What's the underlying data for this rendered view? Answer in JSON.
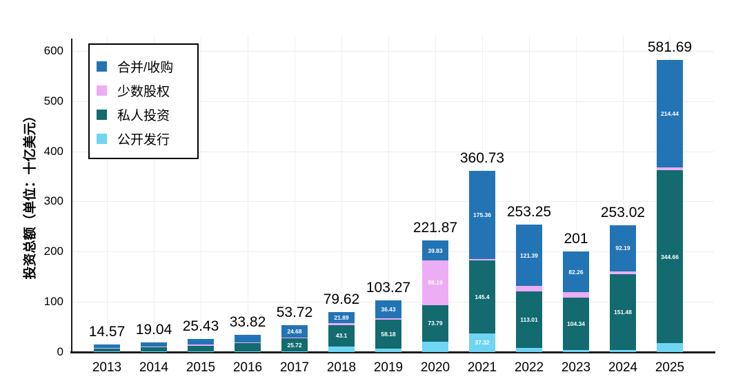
{
  "chart_data": {
    "type": "bar",
    "stacked": true,
    "ylabel": "投资总额（单位：十亿美元）",
    "yticks": [
      "0",
      "100",
      "200",
      "300",
      "400",
      "500",
      "600"
    ],
    "ylim": [
      0,
      630
    ],
    "grid": true,
    "legend_position": "top-left",
    "categories": [
      "2013",
      "2014",
      "2015",
      "2016",
      "2017",
      "2018",
      "2019",
      "2020",
      "2021",
      "2022",
      "2023",
      "2024",
      "2025"
    ],
    "totals": [
      "14.57",
      "19.04",
      "25.43",
      "33.82",
      "53.72",
      "79.62",
      "103.27",
      "221.87",
      "360.73",
      "253.25",
      "201",
      "253.02",
      "581.69"
    ],
    "series": [
      {
        "name": "公开发行",
        "color": "#6fd5f2",
        "values": [
          1.0,
          1.5,
          1.5,
          2.0,
          1.5,
          11.0,
          6.2,
          20.06,
          37.32,
          8.0,
          4.5,
          4.0,
          17.5
        ],
        "labels": [
          null,
          null,
          null,
          null,
          null,
          null,
          null,
          null,
          "37.32",
          null,
          null,
          null,
          null
        ]
      },
      {
        "name": "私人投资",
        "color": "#136b70",
        "values": [
          6.0,
          9.5,
          11.5,
          15.5,
          25.72,
          43.1,
          58.18,
          73.79,
          145.4,
          113.01,
          104.34,
          151.48,
          344.66
        ],
        "labels": [
          null,
          null,
          null,
          null,
          "25.72",
          "43.1",
          "58.18",
          "73.79",
          "145.4",
          "113.01",
          "104.34",
          "151.48",
          "344.66"
        ]
      },
      {
        "name": "少数股权",
        "color": "#ecadf4",
        "values": [
          1.5,
          0.5,
          1.5,
          1.8,
          1.82,
          3.63,
          2.46,
          88.19,
          2.65,
          10.85,
          9.9,
          5.35,
          5.09
        ],
        "labels": [
          null,
          null,
          null,
          null,
          null,
          null,
          null,
          "88.19",
          null,
          null,
          null,
          null,
          null
        ]
      },
      {
        "name": "合并/收购",
        "color": "#2374b5",
        "values": [
          6.07,
          7.54,
          10.93,
          14.52,
          24.68,
          21.89,
          36.43,
          39.83,
          175.36,
          121.39,
          82.26,
          92.19,
          214.44
        ],
        "labels": [
          null,
          null,
          null,
          null,
          "24.68",
          "21.89",
          "36.43",
          "39.83",
          "175.36",
          "121.39",
          "82.26",
          "92.19",
          "214.44"
        ]
      }
    ],
    "legend": [
      {
        "label": "合并/收购",
        "color": "#2374b5"
      },
      {
        "label": "少数股权",
        "color": "#ecadf4"
      },
      {
        "label": "私人投资",
        "color": "#136b70"
      },
      {
        "label": "公开发行",
        "color": "#6fd5f2"
      }
    ]
  }
}
